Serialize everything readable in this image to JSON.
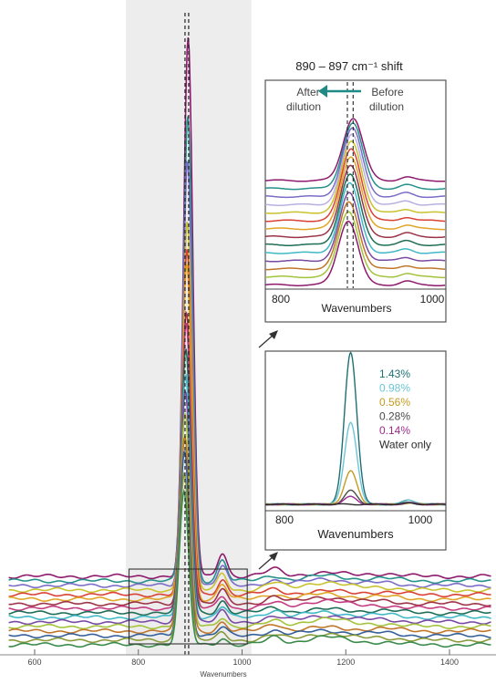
{
  "chart_data": [
    {
      "type": "line",
      "title": "",
      "xlabel": "Wavenumbers",
      "ylabel": "",
      "xlim": [
        550,
        1480
      ],
      "xticks": [
        600,
        800,
        1000,
        1200,
        1400
      ],
      "highlight_range": [
        776,
        1018
      ],
      "marker_lines": [
        890,
        897
      ],
      "peak_position_range": [
        888,
        896
      ],
      "baseline_count": 16,
      "series_colors": [
        "#8e1a6e",
        "#25918a",
        "#7b6cc7",
        "#c9c22f",
        "#d94135",
        "#e0a526",
        "#9c3348",
        "#c33b80",
        "#1e6e57",
        "#40b9c6",
        "#7a4aa3",
        "#a3c33d",
        "#c0762a",
        "#355f99",
        "#8a9a3a",
        "#3a8a4a"
      ],
      "series_peaks": [
        1.0,
        0.86,
        0.78,
        0.67,
        0.62,
        0.6,
        0.52,
        0.5,
        0.46,
        0.42,
        0.4,
        0.36,
        0.33,
        0.31,
        0.28,
        0.25
      ]
    },
    {
      "type": "line",
      "title": "890 – 897 cm⁻¹ shift",
      "xlabel": "Wavenumbers",
      "xlim": [
        790,
        1010
      ],
      "xtick_labels": [
        "800",
        "1000"
      ],
      "marker_lines": [
        890,
        897
      ],
      "annotation_left": [
        "After",
        "dilution"
      ],
      "annotation_right": [
        "Before",
        "dilution"
      ],
      "series_colors": [
        "#8e1a6e",
        "#25918a",
        "#7b6cc7",
        "#b8b0e0",
        "#c9c22f",
        "#d94135",
        "#e0a526",
        "#9c3348",
        "#1e6e57",
        "#40b9c6",
        "#7a4aa3",
        "#c0762a",
        "#a3c33d",
        "#8e1a6e"
      ],
      "series_peaks": [
        1.0,
        0.93,
        0.87,
        0.81,
        0.76,
        0.71,
        0.66,
        0.61,
        0.56,
        0.52,
        0.48,
        0.45,
        0.42,
        0.39
      ]
    },
    {
      "type": "line",
      "xlabel": "Wavenumbers",
      "xlim": [
        790,
        1010
      ],
      "xtick_labels": [
        "800",
        "1000"
      ],
      "legend": [
        {
          "label": "1.43%",
          "color": "#1e6e73"
        },
        {
          "label": "0.98%",
          "color": "#6cc6d6"
        },
        {
          "label": "0.56%",
          "color": "#c49a1f"
        },
        {
          "label": "0.28%",
          "color": "#4a4a4a"
        },
        {
          "label": "0.14%",
          "color": "#9b2c8e"
        },
        {
          "label": "Water only",
          "color": "#2a2a2a"
        }
      ],
      "series": [
        {
          "name": "1.43%",
          "peak": 1.0,
          "color": "#1e6e73"
        },
        {
          "name": "0.98%",
          "peak": 0.54,
          "color": "#6cc6d6"
        },
        {
          "name": "0.56%",
          "peak": 0.22,
          "color": "#c49a1f"
        },
        {
          "name": "0.28%",
          "peak": 0.09,
          "color": "#4a4a4a"
        },
        {
          "name": "0.14%",
          "peak": 0.05,
          "color": "#9b2c8e"
        },
        {
          "name": "Water only",
          "peak": 0.0,
          "color": "#2a2a2a"
        }
      ]
    }
  ]
}
